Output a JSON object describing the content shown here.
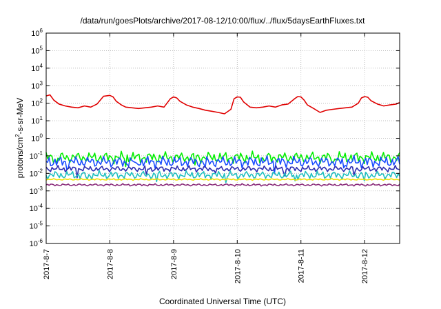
{
  "chart_data": {
    "type": "line",
    "title": "/data/run/goesPlots/archive/2017-08-12/10:00/flux/../flux/5daysEarthFluxes.txt",
    "xlabel": "Coordinated Universal Time (UTC)",
    "ylabel": "protons/cm2-s-sr-MeV",
    "ylabel_parts": {
      "pre": "protons/cm",
      "sup": "2",
      "post": "-s-sr-MeV"
    },
    "yscale": "log",
    "ylim": [
      1e-06,
      1000000.0
    ],
    "xlim": [
      0,
      5.55
    ],
    "x_unit": "days since 2017-8-7 00:00 UTC",
    "grid": true,
    "legend": "none",
    "y_ticks": [
      {
        "exp": "-6"
      },
      {
        "exp": "-5"
      },
      {
        "exp": "-4"
      },
      {
        "exp": "-3"
      },
      {
        "exp": "-2"
      },
      {
        "exp": "-1"
      },
      {
        "exp": "0"
      },
      {
        "exp": "1"
      },
      {
        "exp": "2"
      },
      {
        "exp": "3"
      },
      {
        "exp": "4"
      },
      {
        "exp": "5"
      },
      {
        "exp": "6"
      }
    ],
    "x_ticks": [
      {
        "label": "2017-8-7",
        "pos": 0
      },
      {
        "label": "2017-8-8",
        "pos": 1
      },
      {
        "label": "2017-8-9",
        "pos": 2
      },
      {
        "label": "2017-8-10",
        "pos": 3
      },
      {
        "label": "2017-8-11",
        "pos": 4
      },
      {
        "label": "2017-8-12",
        "pos": 5
      }
    ],
    "series": [
      {
        "color": "#e00000",
        "x": [
          0,
          0.06,
          0.12,
          0.2,
          0.3,
          0.4,
          0.5,
          0.6,
          0.7,
          0.8,
          0.9,
          1.0,
          1.05,
          1.1,
          1.18,
          1.25,
          1.35,
          1.45,
          1.55,
          1.65,
          1.75,
          1.85,
          1.95,
          2.0,
          2.05,
          2.1,
          2.2,
          2.3,
          2.4,
          2.5,
          2.6,
          2.7,
          2.8,
          2.9,
          2.95,
          3.0,
          3.05,
          3.1,
          3.2,
          3.3,
          3.4,
          3.5,
          3.6,
          3.7,
          3.8,
          3.9,
          3.95,
          4.0,
          4.05,
          4.1,
          4.2,
          4.3,
          4.4,
          4.5,
          4.6,
          4.7,
          4.8,
          4.9,
          4.95,
          5.0,
          5.05,
          5.1,
          5.2,
          5.3,
          5.4,
          5.5,
          5.55
        ],
        "y": [
          260,
          300,
          150,
          90,
          70,
          60,
          55,
          70,
          60,
          90,
          250,
          280,
          230,
          130,
          80,
          60,
          55,
          50,
          55,
          60,
          70,
          60,
          180,
          230,
          200,
          130,
          80,
          60,
          50,
          40,
          35,
          30,
          25,
          45,
          180,
          230,
          220,
          120,
          60,
          55,
          60,
          70,
          60,
          80,
          90,
          180,
          240,
          230,
          150,
          80,
          50,
          30,
          40,
          45,
          50,
          55,
          60,
          100,
          200,
          240,
          220,
          140,
          90,
          70,
          80,
          90,
          110
        ]
      },
      {
        "color": "#00ee00",
        "base": 0.08,
        "noise": 0.35,
        "phase": 1
      },
      {
        "color": "#1a4dff",
        "base": 0.045,
        "noise": 0.35,
        "phase": 2
      },
      {
        "color": "#2a2ab0",
        "base": 0.018,
        "noise": 0.18,
        "phase": 3
      },
      {
        "color": "#1fbfbf",
        "base": 0.008,
        "noise": 0.25,
        "phase": 4
      },
      {
        "color": "#f0e000",
        "base": 0.0045,
        "noise": 0.05,
        "phase": 5
      },
      {
        "color": "#8a2a7a",
        "base": 0.0022,
        "noise": 0.07,
        "phase": 6
      }
    ]
  }
}
